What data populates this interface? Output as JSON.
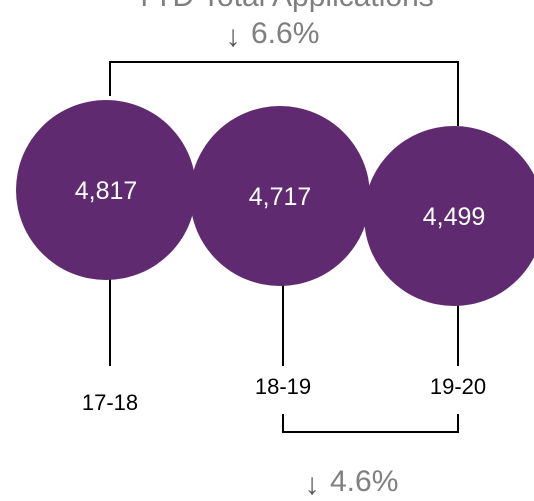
{
  "title": "YTD Total Applications",
  "chart_data": {
    "type": "bubble",
    "categories": [
      "17-18",
      "18-19",
      "19-20"
    ],
    "values": [
      4817,
      4717,
      4499
    ],
    "value_labels": [
      "4,817",
      "4,717",
      "4,499"
    ],
    "bubble_color": "#5f2a70",
    "changes": [
      {
        "from": "17-18",
        "to": "19-20",
        "direction": "down",
        "arrow": "↓",
        "label": "6.6%"
      },
      {
        "from": "18-19",
        "to": "19-20",
        "direction": "down",
        "arrow": "↓",
        "label": "4.6%"
      }
    ]
  }
}
